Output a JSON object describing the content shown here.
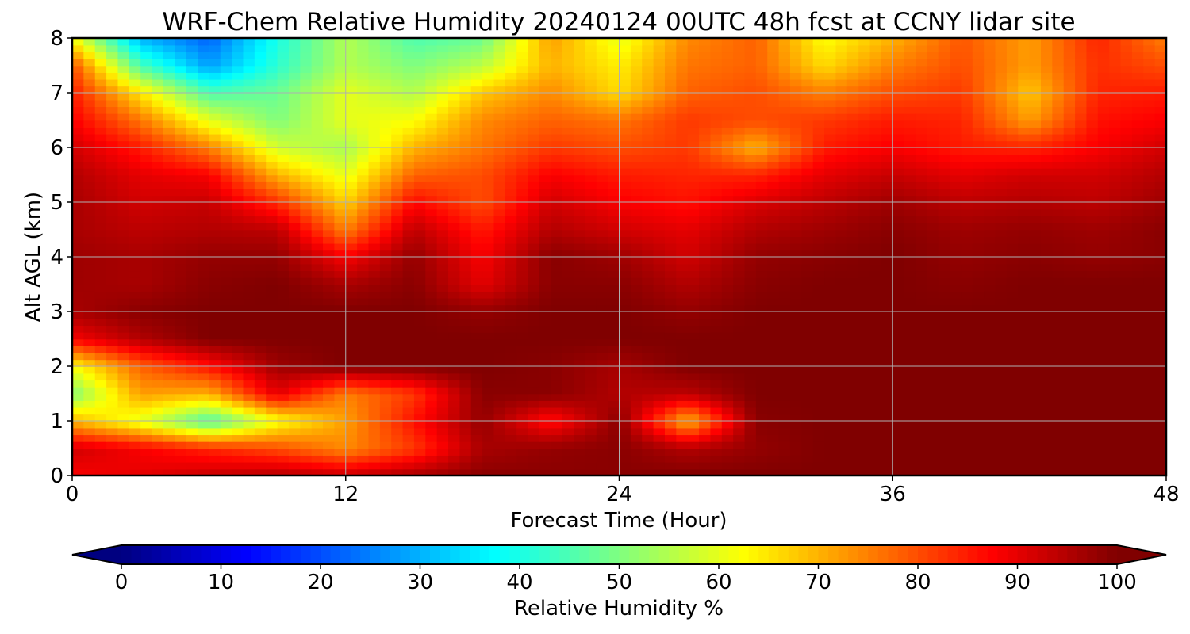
{
  "chart_data": {
    "type": "heatmap",
    "title": "WRF-Chem Relative Humidity 20240124 00UTC 48h fcst at CCNY lidar site",
    "xlabel": "Forecast Time (Hour)",
    "ylabel": "Alt AGL (km)",
    "xlim": [
      0,
      48
    ],
    "ylim": [
      0,
      8
    ],
    "x_ticks": [
      "0",
      "12",
      "24",
      "36",
      "48"
    ],
    "y_ticks": [
      "0",
      "1",
      "2",
      "3",
      "4",
      "5",
      "6",
      "7",
      "8"
    ],
    "grid": true,
    "colormap": "jet",
    "colorbar": {
      "label": "Relative Humidity %",
      "range": [
        0,
        100
      ],
      "extend": "both",
      "ticks": [
        "0",
        "10",
        "20",
        "30",
        "40",
        "50",
        "60",
        "70",
        "80",
        "90",
        "100"
      ]
    },
    "x": [
      0,
      3,
      6,
      9,
      12,
      15,
      18,
      21,
      24,
      27,
      30,
      33,
      36,
      39,
      42,
      45,
      48
    ],
    "y": [
      0,
      0.5,
      1,
      1.5,
      2,
      2.5,
      3,
      3.5,
      4,
      4.5,
      5,
      5.5,
      6,
      6.5,
      7,
      7.5,
      8
    ],
    "z": [
      [
        88,
        90,
        93,
        95,
        93,
        96,
        99,
        99,
        99,
        100,
        100,
        100,
        100,
        100,
        100,
        100,
        100
      ],
      [
        92,
        88,
        84,
        80,
        74,
        82,
        96,
        98,
        99,
        95,
        98,
        100,
        100,
        100,
        100,
        100,
        100
      ],
      [
        70,
        60,
        45,
        62,
        72,
        86,
        98,
        86,
        99,
        70,
        99,
        100,
        100,
        100,
        100,
        100,
        100
      ],
      [
        50,
        72,
        70,
        90,
        75,
        82,
        99,
        99,
        95,
        94,
        100,
        100,
        100,
        100,
        100,
        100,
        100
      ],
      [
        62,
        78,
        86,
        97,
        100,
        100,
        100,
        99,
        96,
        100,
        100,
        100,
        100,
        100,
        100,
        100,
        100
      ],
      [
        88,
        95,
        100,
        100,
        100,
        100,
        100,
        100,
        100,
        100,
        100,
        100,
        100,
        100,
        100,
        100,
        100
      ],
      [
        96,
        99,
        100,
        100,
        100,
        100,
        98,
        100,
        100,
        98,
        100,
        100,
        100,
        100,
        100,
        100,
        100
      ],
      [
        97,
        96,
        99,
        100,
        96,
        99,
        90,
        99,
        99,
        95,
        99,
        100,
        100,
        99,
        100,
        100,
        100
      ],
      [
        97,
        96,
        98,
        98,
        88,
        98,
        88,
        99,
        97,
        92,
        98,
        99,
        100,
        98,
        99,
        98,
        99
      ],
      [
        96,
        94,
        95,
        94,
        75,
        94,
        85,
        95,
        92,
        90,
        95,
        97,
        99,
        97,
        98,
        97,
        99
      ],
      [
        96,
        92,
        93,
        83,
        67,
        87,
        80,
        92,
        88,
        86,
        91,
        94,
        97,
        94,
        95,
        94,
        97
      ],
      [
        95,
        90,
        88,
        70,
        60,
        78,
        80,
        88,
        85,
        84,
        84,
        90,
        93,
        90,
        92,
        92,
        95
      ],
      [
        92,
        85,
        75,
        58,
        54,
        70,
        76,
        82,
        80,
        82,
        70,
        85,
        88,
        85,
        84,
        88,
        92
      ],
      [
        88,
        76,
        60,
        50,
        60,
        62,
        74,
        78,
        76,
        82,
        80,
        82,
        85,
        84,
        72,
        86,
        88
      ],
      [
        85,
        65,
        45,
        48,
        60,
        55,
        68,
        74,
        66,
        78,
        80,
        75,
        80,
        82,
        68,
        84,
        85
      ],
      [
        80,
        45,
        28,
        42,
        55,
        50,
        56,
        70,
        64,
        76,
        78,
        66,
        75,
        80,
        72,
        83,
        80
      ],
      [
        62,
        30,
        22,
        40,
        55,
        45,
        48,
        72,
        60,
        74,
        78,
        62,
        70,
        79,
        72,
        84,
        75
      ]
    ]
  }
}
